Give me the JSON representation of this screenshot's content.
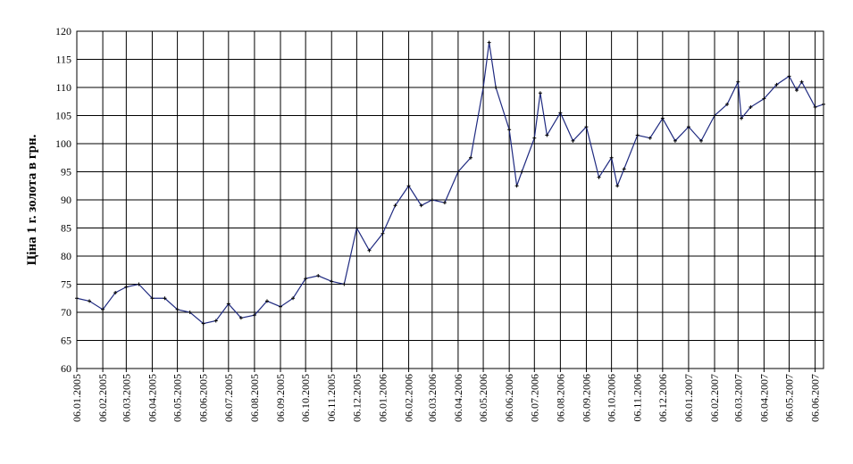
{
  "chart_data": {
    "type": "line",
    "y_label": "Ціна 1 г. золота в грн.",
    "x": [
      "06.01.2005",
      "21.01.2005",
      "06.02.2005",
      "21.02.2005",
      "06.03.2005",
      "21.03.2005",
      "06.04.2005",
      "21.04.2005",
      "06.05.2005",
      "21.05.2005",
      "06.06.2005",
      "21.06.2005",
      "06.07.2005",
      "21.07.2005",
      "06.08.2005",
      "21.08.2005",
      "06.09.2005",
      "21.09.2005",
      "06.10.2005",
      "21.10.2005",
      "06.11.2005",
      "21.11.2005",
      "06.12.2005",
      "21.12.2005",
      "06.01.2006",
      "21.01.2006",
      "06.02.2006",
      "21.02.2006",
      "06.03.2006",
      "21.03.2006",
      "06.04.2006",
      "21.04.2006",
      "06.05.2006",
      "13.05.2006",
      "21.05.2006",
      "06.06.2006",
      "15.06.2006",
      "21.06.2006",
      "06.07.2006",
      "13.07.2006",
      "21.07.2006",
      "06.08.2006",
      "21.08.2006",
      "06.09.2006",
      "21.09.2006",
      "06.10.2006",
      "13.10.2006",
      "21.10.2006",
      "06.11.2006",
      "21.11.2006",
      "06.12.2006",
      "21.12.2006",
      "06.01.2007",
      "21.01.2007",
      "06.02.2007",
      "21.02.2007",
      "06.03.2007",
      "10.03.2007",
      "21.03.2007",
      "06.04.2007",
      "21.04.2007",
      "06.05.2007",
      "15.05.2007",
      "21.05.2007",
      "06.06.2007",
      "16.06.2007"
    ],
    "series": [
      {
        "color": "#1f2a80",
        "values": [
          72.5,
          72,
          70.5,
          73.5,
          74.5,
          75,
          72.5,
          72.5,
          70.5,
          70,
          68,
          68.5,
          71.5,
          69,
          69.5,
          72,
          71,
          72.5,
          76,
          76.5,
          75.5,
          75,
          85,
          81,
          84,
          89,
          92.5,
          89,
          90,
          89.5,
          95,
          97.5,
          110,
          118,
          110,
          102.5,
          92.5,
          95,
          101,
          109,
          101.5,
          105.5,
          100.5,
          103,
          94,
          97.5,
          92.5,
          95.5,
          101.5,
          101,
          104.5,
          100.5,
          103,
          100.5,
          105,
          107,
          111,
          104.5,
          106.5,
          108,
          110.5,
          112,
          109.5,
          111,
          106.5,
          107
        ]
      }
    ],
    "xlim": [
      "06.01.2005",
      "16.06.2007"
    ],
    "xticks": [
      "06.01.2005",
      "06.02.2005",
      "06.03.2005",
      "06.04.2005",
      "06.05.2005",
      "06.06.2005",
      "06.07.2005",
      "06.08.2005",
      "06.09.2005",
      "06.10.2005",
      "06.11.2005",
      "06.12.2005",
      "06.01.2006",
      "06.02.2006",
      "06.03.2006",
      "06.04.2006",
      "06.05.2006",
      "06.06.2006",
      "06.07.2006",
      "06.08.2006",
      "06.09.2006",
      "06.10.2006",
      "06.11.2006",
      "06.12.2006",
      "06.01.2007",
      "06.02.2007",
      "06.03.2007",
      "06.04.2007",
      "06.05.2007",
      "06.06.2007"
    ],
    "ylim": [
      60,
      120
    ],
    "yticks": [
      60,
      65,
      70,
      75,
      80,
      85,
      90,
      95,
      100,
      105,
      110,
      115,
      120
    ],
    "grid": true
  }
}
